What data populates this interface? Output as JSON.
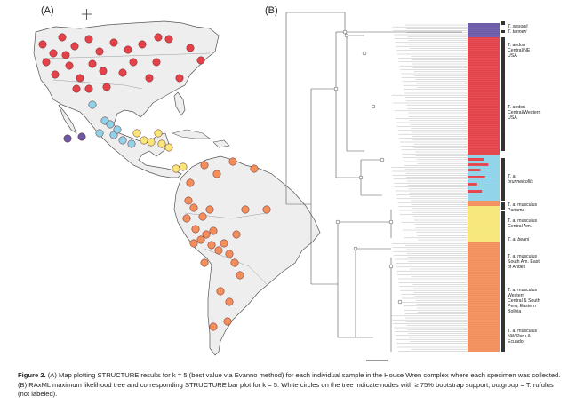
{
  "panels": {
    "a": "(A)",
    "b": "(B)"
  },
  "clusters": {
    "purple": "#6b5aa8",
    "red": "#e4424a",
    "cyan": "#8fd3ea",
    "yellow": "#f7e77a",
    "orange": "#f28f5c"
  },
  "structure_k": 5,
  "clade_labels": [
    {
      "text": "T. sissonii",
      "italic": true
    },
    {
      "text": "T. tanneri",
      "italic": true
    },
    {
      "text": "T. aedon\nCentral/NE\nUSA",
      "italic": false
    },
    {
      "text": "T. aedon\nCentral/Western\nUSA",
      "italic": false
    },
    {
      "text": "T. a.\nbrunneicollis",
      "italic": true
    },
    {
      "text": "T. a. musculus\nPanama",
      "italic": false
    },
    {
      "text": "T. a. musculus\nCentral Am.",
      "italic": false
    },
    {
      "text": "T. a. beani",
      "italic": true
    },
    {
      "text": "T. a. musculus\nSouth Am. East\nof Andes",
      "italic": false
    },
    {
      "text": "T. a. musculus\nWestern\nCentral & South\nPeru, Eastern\nBolivia",
      "italic": false
    },
    {
      "text": "T. a. musculus\nNW Peru &\nEcuador",
      "italic": false
    }
  ],
  "caption": {
    "label": "Figure 2.",
    "text": "(A) Map plotting STRUCTURE results for k = 5 (best value via Evanno method) for each individual sample in the House Wren complex where each specimen was collected. (B) RAxML maximum likelihood tree and corresponding STRUCTURE bar plot for k = 5. White circles on the tree indicate nodes with ≥ 75% bootstrap support, outgroup = T. rufulus (not labeled)."
  }
}
